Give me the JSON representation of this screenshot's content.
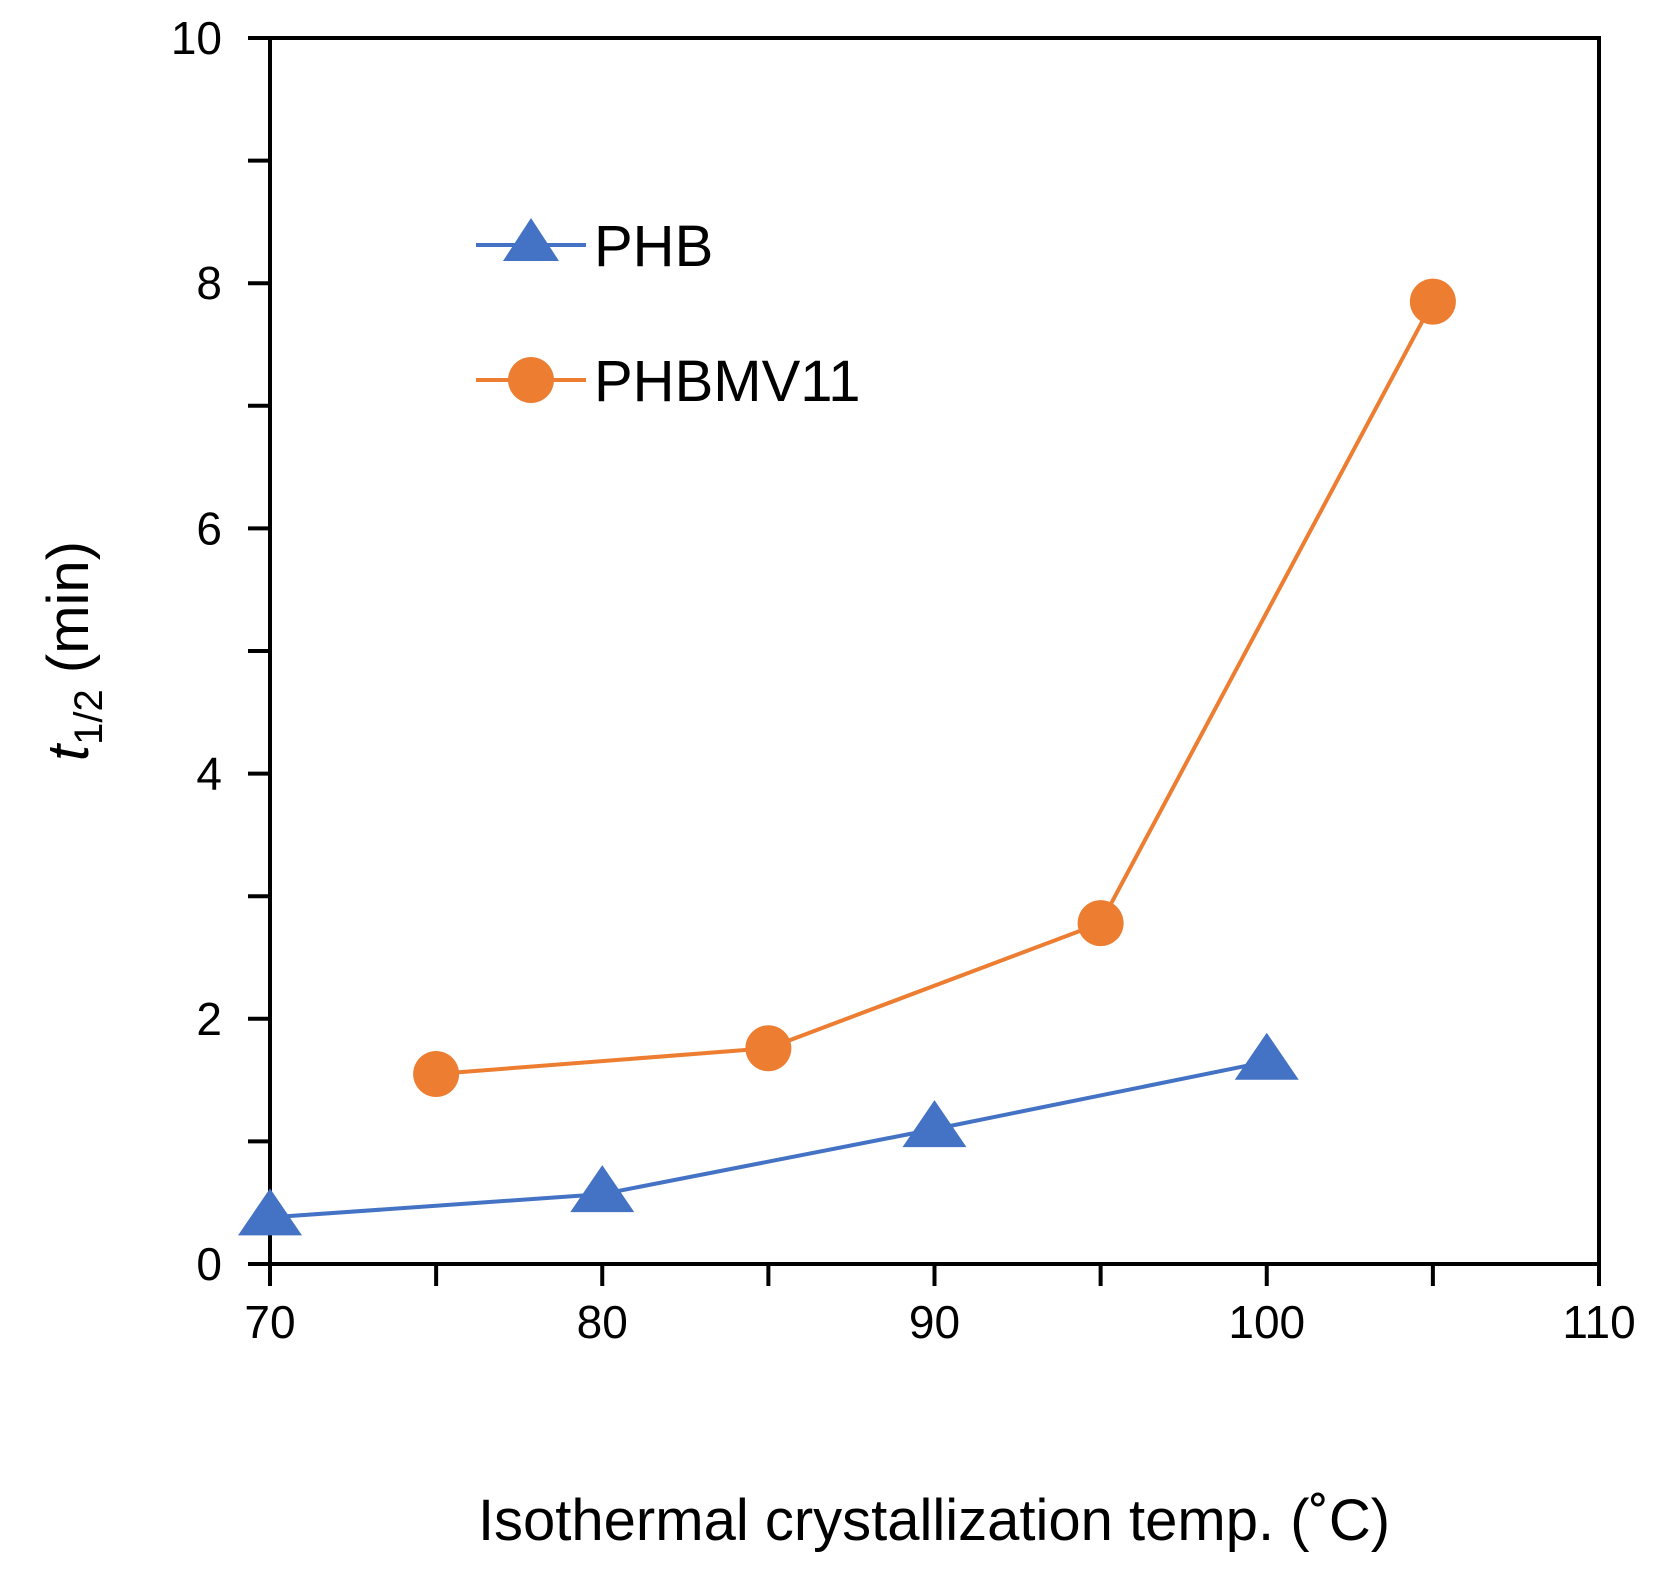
{
  "colors": {
    "PHB": "#4472C4",
    "PHBMV11": "#ED7D31",
    "axis": "#000000",
    "background": "#ffffff"
  },
  "chart_data": {
    "type": "line",
    "title": "",
    "xlabel": "Isothermal crystallization temp. (˚C)",
    "ylabel_main": "t",
    "ylabel_sub": "1/2",
    "ylabel_unit": " (min)",
    "xlim": [
      70,
      110
    ],
    "ylim": [
      0,
      10
    ],
    "x_ticks": [
      70,
      80,
      90,
      100,
      110
    ],
    "x_minor_ticks": [
      75,
      85,
      95,
      105
    ],
    "y_ticks": [
      0,
      2,
      4,
      6,
      8,
      10
    ],
    "y_minor_ticks": [
      1,
      3,
      5,
      7,
      9
    ],
    "grid": false,
    "legend_position": "top-left",
    "series": [
      {
        "name": "PHB",
        "marker": "triangle",
        "x": [
          70,
          80,
          90,
          100
        ],
        "values": [
          0.38,
          0.57,
          1.1,
          1.65
        ]
      },
      {
        "name": "PHBMV11",
        "marker": "circle",
        "x": [
          75,
          85,
          95,
          105
        ],
        "values": [
          1.55,
          1.76,
          2.78,
          7.85
        ]
      }
    ]
  }
}
